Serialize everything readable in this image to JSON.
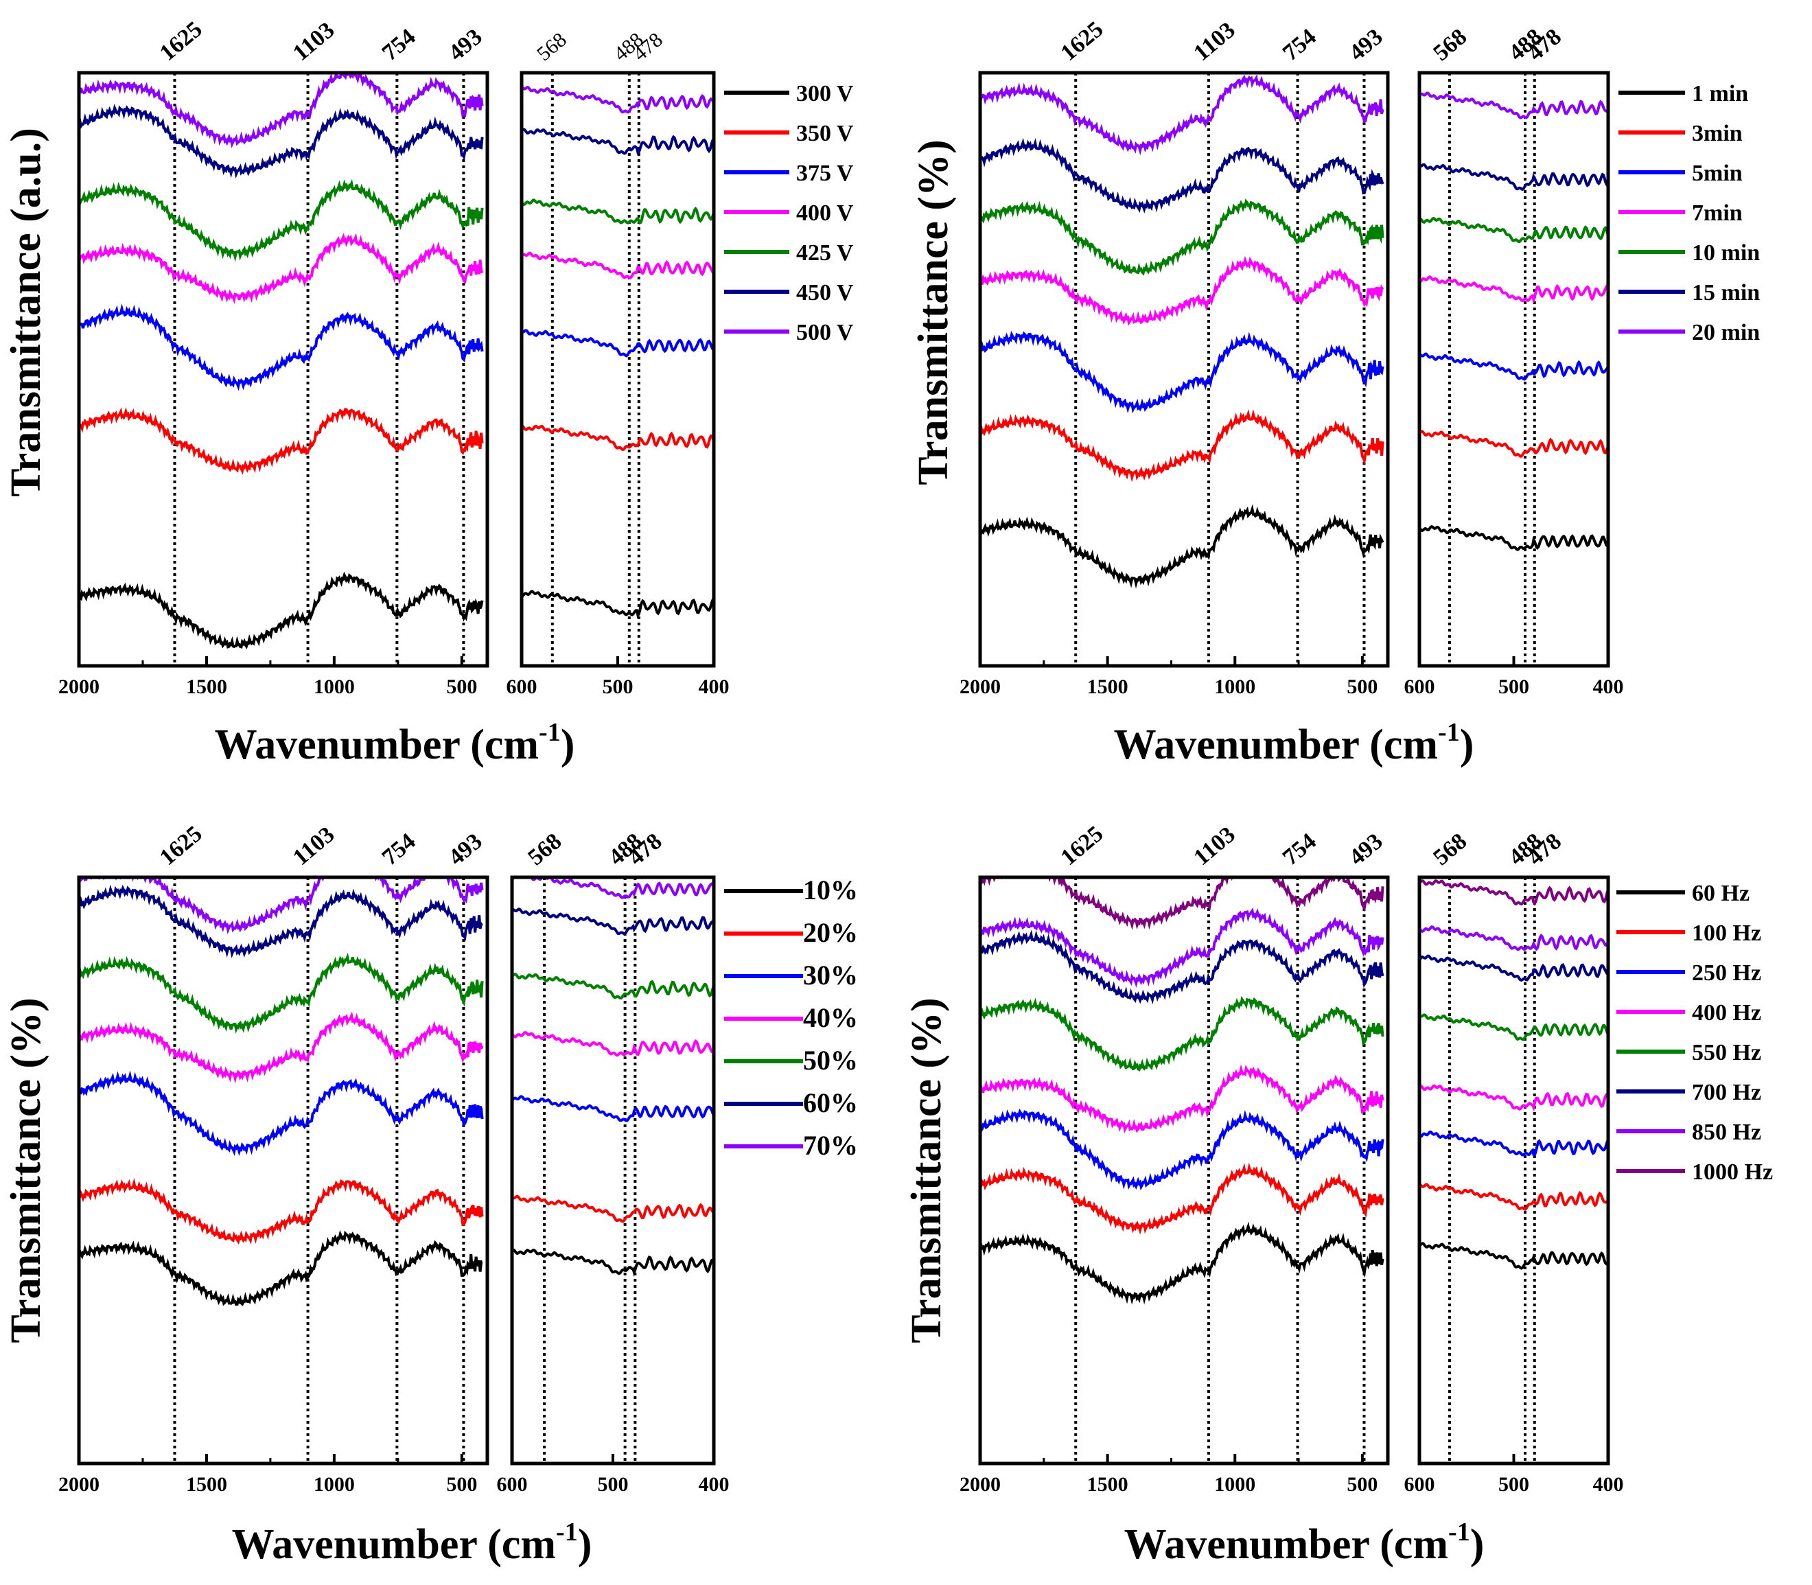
{
  "chart_data": [
    {
      "type": "line",
      "ylabel": "Transmittance (a.u.)",
      "xlabel": "Wavenumber (cm-1)",
      "xlabel_main": "Wavenumber (cm",
      "xlabel_sup": "-1",
      "xlabel_close": ")",
      "main_xlim": [
        2000,
        400
      ],
      "main_xticks": [
        "2000",
        "1500",
        "1000",
        "500"
      ],
      "zoom_xlim": [
        600,
        400
      ],
      "zoom_xticks": [
        "600",
        "500",
        "400"
      ],
      "peaks_main": [
        "1625",
        "1103",
        "754",
        "493"
      ],
      "peaks_zoom": [
        "568",
        "488",
        "478"
      ],
      "series": [
        {
          "name": "300 V",
          "color": "#000000"
        },
        {
          "name": "350 V",
          "color": "#ff0000"
        },
        {
          "name": "375 V",
          "color": "#0000ff"
        },
        {
          "name": "400 V",
          "color": "#ff00ff"
        },
        {
          "name": "425 V",
          "color": "#008000"
        },
        {
          "name": "450 V",
          "color": "#000080"
        },
        {
          "name": "500 V",
          "color": "#8b00ff"
        }
      ]
    },
    {
      "type": "line",
      "ylabel": "Transmittance (%)",
      "xlabel": "Wavenumber (cm-1)",
      "xlabel_main": "Wavenumber (cm",
      "xlabel_sup": "-1",
      "xlabel_close": ")",
      "main_xlim": [
        2000,
        400
      ],
      "main_xticks": [
        "2000",
        "1500",
        "1000",
        "500"
      ],
      "zoom_xlim": [
        600,
        400
      ],
      "zoom_xticks": [
        "600",
        "500",
        "400"
      ],
      "peaks_main": [
        "1625",
        "1103",
        "754",
        "493"
      ],
      "peaks_zoom": [
        "568",
        "488",
        "478"
      ],
      "series": [
        {
          "name": "1 min",
          "color": "#000000"
        },
        {
          "name": "3min",
          "color": "#ff0000"
        },
        {
          "name": "5min",
          "color": "#0000ff"
        },
        {
          "name": "7min",
          "color": "#ff00ff"
        },
        {
          "name": "10 min",
          "color": "#008000"
        },
        {
          "name": "15 min",
          "color": "#000080"
        },
        {
          "name": "20 min",
          "color": "#8b00ff"
        }
      ]
    },
    {
      "type": "line",
      "ylabel": "Transmittance (%)",
      "xlabel": "Wavenumber (cm-1)",
      "xlabel_main": "Wavenumber (cm",
      "xlabel_sup": "-1",
      "xlabel_close": ")",
      "main_xlim": [
        2000,
        400
      ],
      "main_xticks": [
        "2000",
        "1500",
        "1000",
        "500"
      ],
      "zoom_xlim": [
        600,
        400
      ],
      "zoom_xticks": [
        "600",
        "500",
        "400"
      ],
      "peaks_main": [
        "1625",
        "1103",
        "754",
        "493"
      ],
      "peaks_zoom": [
        "568",
        "488",
        "478"
      ],
      "series": [
        {
          "name": "10%",
          "color": "#000000"
        },
        {
          "name": "20%",
          "color": "#ff0000"
        },
        {
          "name": "30%",
          "color": "#0000ff"
        },
        {
          "name": "40%",
          "color": "#ff00ff"
        },
        {
          "name": "50%",
          "color": "#008000"
        },
        {
          "name": "60%",
          "color": "#000080"
        },
        {
          "name": "70%",
          "color": "#8b00ff"
        }
      ]
    },
    {
      "type": "line",
      "ylabel": "Transmittance (%)",
      "xlabel": "Wavenumber (cm-1)",
      "xlabel_main": "Wavenumber (cm",
      "xlabel_sup": "-1",
      "xlabel_close": ")",
      "main_xlim": [
        2000,
        400
      ],
      "main_xticks": [
        "2000",
        "1500",
        "1000",
        "500"
      ],
      "zoom_xlim": [
        600,
        400
      ],
      "zoom_xticks": [
        "600",
        "500",
        "400"
      ],
      "peaks_main": [
        "1625",
        "1103",
        "754",
        "493"
      ],
      "peaks_zoom": [
        "568",
        "488",
        "478"
      ],
      "series": [
        {
          "name": "60 Hz",
          "color": "#000000"
        },
        {
          "name": "100 Hz",
          "color": "#ff0000"
        },
        {
          "name": "250 Hz",
          "color": "#0000ff"
        },
        {
          "name": "400 Hz",
          "color": "#ff00ff"
        },
        {
          "name": "550 Hz",
          "color": "#008000"
        },
        {
          "name": "700 Hz",
          "color": "#000080"
        },
        {
          "name": "850 Hz",
          "color": "#8b00ff"
        },
        {
          "name": "1000 Hz",
          "color": "#800080"
        }
      ]
    }
  ]
}
